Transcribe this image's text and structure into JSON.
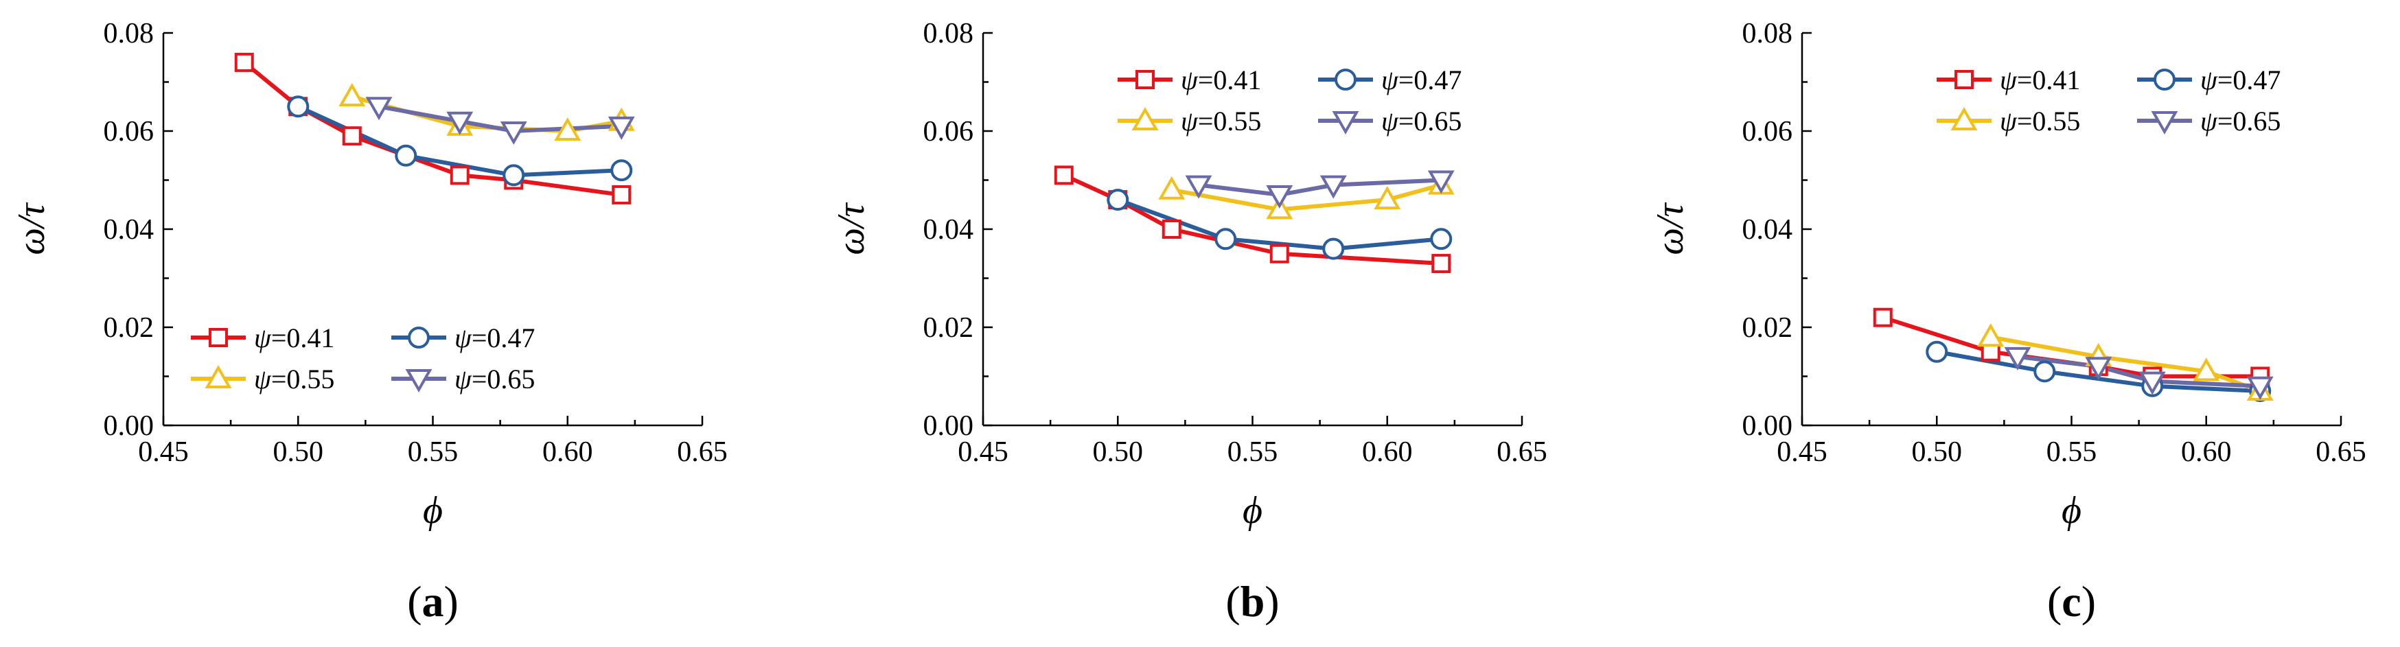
{
  "chart_data": [
    {
      "type": "line",
      "panel_label": "a",
      "xlabel": "ϕ",
      "ylabel": "ω/τ",
      "xlim": [
        0.45,
        0.65
      ],
      "ylim": [
        0.0,
        0.08
      ],
      "xticks": [
        "0.45",
        "0.50",
        "0.55",
        "0.60",
        "0.65"
      ],
      "yticks": [
        "0.00",
        "0.02",
        "0.04",
        "0.06",
        "0.08"
      ],
      "legend": "bottom-left",
      "series": [
        {
          "name": "ψ=0.41",
          "symbol": "ψ",
          "value": "=0.41",
          "color": "#e8141c",
          "marker": "square",
          "x": [
            0.48,
            0.5,
            0.52,
            0.56,
            0.58,
            0.62
          ],
          "y": [
            0.074,
            0.065,
            0.059,
            0.051,
            0.05,
            0.047
          ]
        },
        {
          "name": "ψ=0.47",
          "symbol": "ψ",
          "value": "=0.47",
          "color": "#2a5d9b",
          "marker": "circle",
          "x": [
            0.5,
            0.54,
            0.58,
            0.62
          ],
          "y": [
            0.065,
            0.055,
            0.051,
            0.052
          ]
        },
        {
          "name": "ψ=0.55",
          "symbol": "ψ",
          "value": "=0.55",
          "color": "#f2c01a",
          "marker": "triangle-up",
          "x": [
            0.52,
            0.56,
            0.6,
            0.62
          ],
          "y": [
            0.067,
            0.061,
            0.06,
            0.062
          ]
        },
        {
          "name": "ψ=0.65",
          "symbol": "ψ",
          "value": "=0.65",
          "color": "#6a6aa6",
          "marker": "triangle-down",
          "x": [
            0.53,
            0.56,
            0.58,
            0.62
          ],
          "y": [
            0.065,
            0.062,
            0.06,
            0.061
          ]
        }
      ]
    },
    {
      "type": "line",
      "panel_label": "b",
      "xlabel": "ϕ",
      "ylabel": "ω/τ",
      "xlim": [
        0.45,
        0.65
      ],
      "ylim": [
        0.0,
        0.08
      ],
      "xticks": [
        "0.45",
        "0.50",
        "0.55",
        "0.60",
        "0.65"
      ],
      "yticks": [
        "0.00",
        "0.02",
        "0.04",
        "0.06",
        "0.08"
      ],
      "legend": "top-right",
      "series": [
        {
          "name": "ψ=0.41",
          "symbol": "ψ",
          "value": "=0.41",
          "color": "#e8141c",
          "marker": "square",
          "x": [
            0.48,
            0.5,
            0.52,
            0.56,
            0.62
          ],
          "y": [
            0.051,
            0.046,
            0.04,
            0.035,
            0.033
          ]
        },
        {
          "name": "ψ=0.47",
          "symbol": "ψ",
          "value": "=0.47",
          "color": "#2a5d9b",
          "marker": "circle",
          "x": [
            0.5,
            0.54,
            0.58,
            0.62
          ],
          "y": [
            0.046,
            0.038,
            0.036,
            0.038
          ]
        },
        {
          "name": "ψ=0.55",
          "symbol": "ψ",
          "value": "=0.55",
          "color": "#f2c01a",
          "marker": "triangle-up",
          "x": [
            0.52,
            0.56,
            0.6,
            0.62
          ],
          "y": [
            0.048,
            0.044,
            0.046,
            0.049
          ]
        },
        {
          "name": "ψ=0.65",
          "symbol": "ψ",
          "value": "=0.65",
          "color": "#6a6aa6",
          "marker": "triangle-down",
          "x": [
            0.53,
            0.56,
            0.58,
            0.62
          ],
          "y": [
            0.049,
            0.047,
            0.049,
            0.05
          ]
        }
      ]
    },
    {
      "type": "line",
      "panel_label": "c",
      "xlabel": "ϕ",
      "ylabel": "ω/τ",
      "xlim": [
        0.45,
        0.65
      ],
      "ylim": [
        0.0,
        0.08
      ],
      "xticks": [
        "0.45",
        "0.50",
        "0.55",
        "0.60",
        "0.65"
      ],
      "yticks": [
        "0.00",
        "0.02",
        "0.04",
        "0.06",
        "0.08"
      ],
      "legend": "top-right",
      "series": [
        {
          "name": "ψ=0.41",
          "symbol": "ψ",
          "value": "=0.41",
          "color": "#e8141c",
          "marker": "square",
          "x": [
            0.48,
            0.52,
            0.56,
            0.58,
            0.62
          ],
          "y": [
            0.022,
            0.015,
            0.012,
            0.01,
            0.01
          ]
        },
        {
          "name": "ψ=0.47",
          "symbol": "ψ",
          "value": "=0.47",
          "color": "#2a5d9b",
          "marker": "circle",
          "x": [
            0.5,
            0.54,
            0.58,
            0.62
          ],
          "y": [
            0.015,
            0.011,
            0.008,
            0.007
          ]
        },
        {
          "name": "ψ=0.55",
          "symbol": "ψ",
          "value": "=0.55",
          "color": "#f2c01a",
          "marker": "triangle-up",
          "x": [
            0.52,
            0.56,
            0.6,
            0.62
          ],
          "y": [
            0.018,
            0.014,
            0.011,
            0.007
          ]
        },
        {
          "name": "ψ=0.65",
          "symbol": "ψ",
          "value": "=0.65",
          "color": "#6a6aa6",
          "marker": "triangle-down",
          "x": [
            0.53,
            0.56,
            0.58,
            0.62
          ],
          "y": [
            0.014,
            0.012,
            0.009,
            0.008
          ]
        }
      ]
    }
  ]
}
